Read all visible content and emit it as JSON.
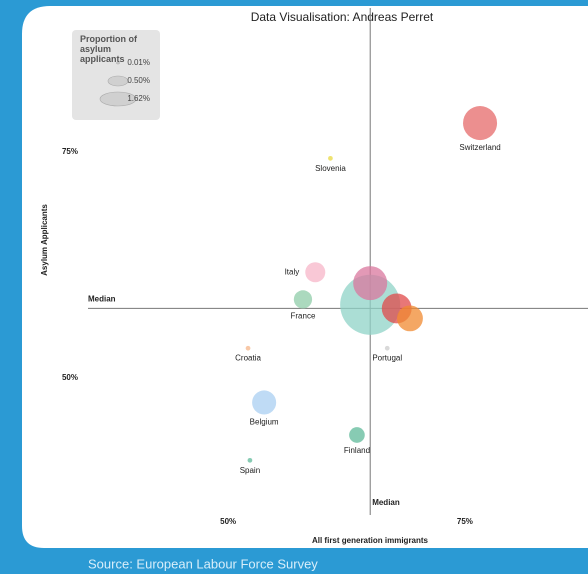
{
  "chart_data": {
    "type": "bubble",
    "title": "Data Visualisation: Andreas Perret",
    "source": "Source: European Labour Force Survey",
    "x_label": "All first generation immigrants",
    "y_label": "Asylum Applicants",
    "xlim": [
      35.2,
      88
    ],
    "ylim": [
      34.3,
      89.6
    ],
    "xticks": [
      {
        "value": 50,
        "label": "50%"
      },
      {
        "value": 75,
        "label": "75%"
      }
    ],
    "yticks": [
      {
        "value": 50,
        "label": "50%"
      },
      {
        "value": 75,
        "label": "75%"
      }
    ],
    "medians": [
      {
        "axis": "x",
        "value": 65,
        "label": "Median"
      },
      {
        "axis": "y",
        "value": 57.7,
        "label": "Median"
      }
    ],
    "legend": {
      "title": "Proportion of asylum applicants",
      "sizes": [
        {
          "value": 0.01,
          "label": "0.01%"
        },
        {
          "value": 0.5,
          "label": "0.50%"
        },
        {
          "value": 1.62,
          "label": "1.62%"
        }
      ]
    },
    "series": [
      {
        "categories": [
          null,
          null,
          null,
          null,
          "Switzerland",
          "Slovenia",
          "Italy",
          "France",
          "Croatia",
          "Portugal",
          "Belgium",
          "Finland",
          "Spain"
        ],
        "x": [
          65,
          65,
          67.8,
          69.2,
          76.6,
          60.8,
          59.2,
          57.9,
          52.1,
          66.8,
          53.8,
          63.6,
          52.3
        ],
        "values": [
          58.1,
          60.5,
          57.7,
          56.6,
          78.2,
          74.3,
          61.7,
          58.7,
          53.3,
          53.3,
          47.3,
          43.7,
          40.9
        ],
        "sizes": [
          1.62,
          0.52,
          0.4,
          0.3,
          0.52,
          0.01,
          0.18,
          0.15,
          0.01,
          0.01,
          0.26,
          0.11,
          0.01
        ],
        "colors": [
          "#8fd3c7",
          "#d9779e",
          "#e04a4a",
          "#f08a30",
          "#e66a6a",
          "#e8d840",
          "#f7b6c8",
          "#8fcca8",
          "#f5b58a",
          "#cccccc",
          "#a9cff2",
          "#5fb99a",
          "#5fb99a"
        ]
      }
    ]
  }
}
